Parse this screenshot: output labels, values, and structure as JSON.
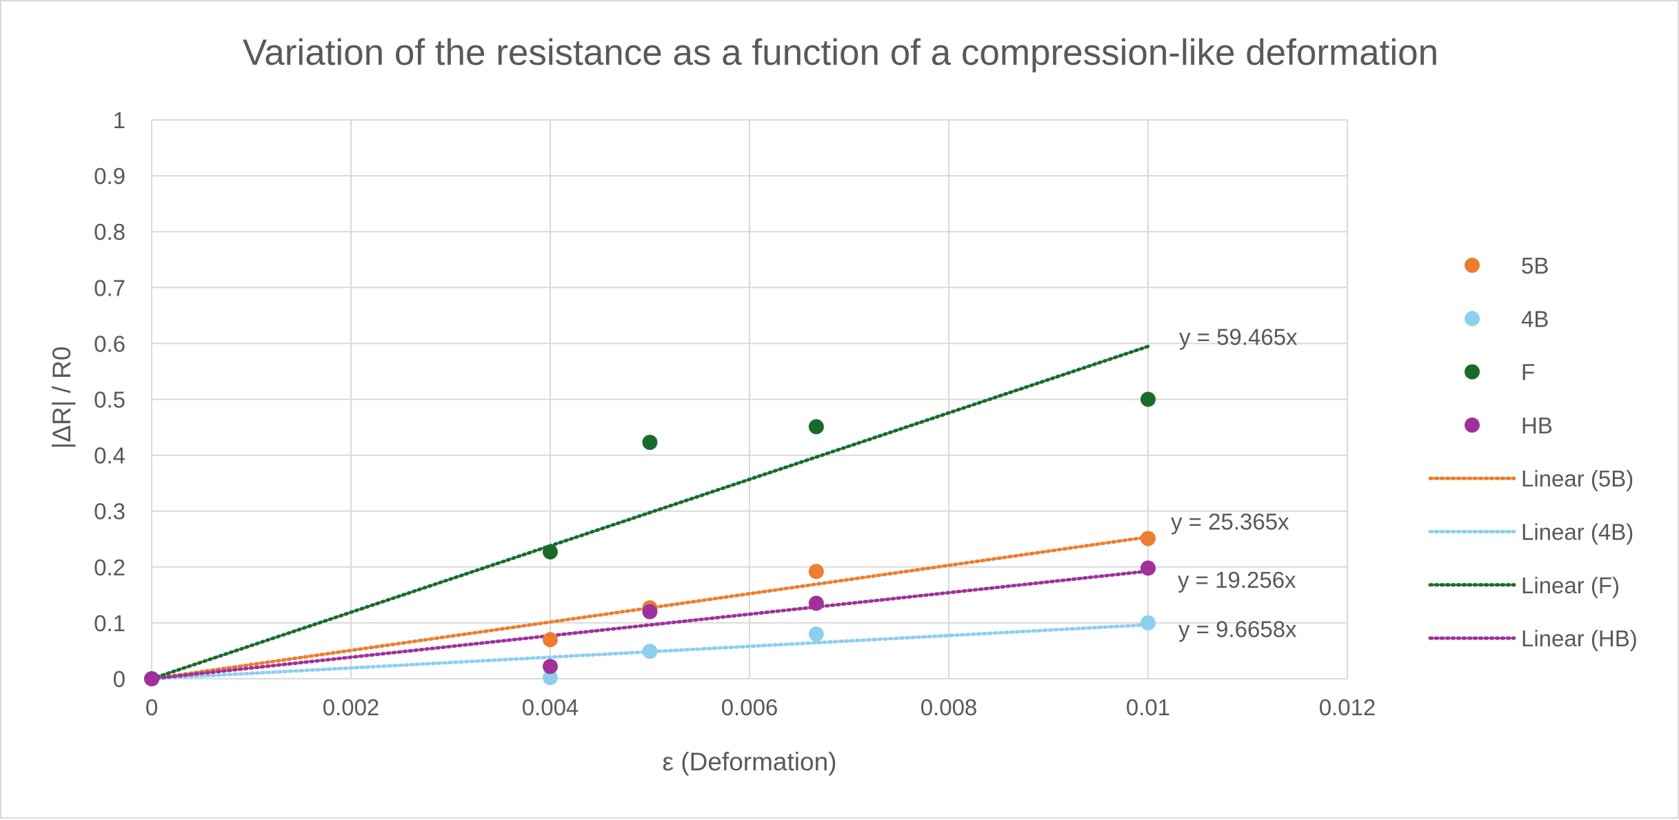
{
  "chart_data": {
    "type": "scatter",
    "title": "Variation of the resistance as a function of a compression-like deformation",
    "xlabel": "ε  (Deformation)",
    "ylabel": "|ΔR| / R0",
    "xlim": [
      0,
      0.012
    ],
    "ylim": [
      0,
      1
    ],
    "x_ticks": [
      {
        "value": 0,
        "label": "0"
      },
      {
        "value": 0.002,
        "label": "0.002"
      },
      {
        "value": 0.004,
        "label": "0.004"
      },
      {
        "value": 0.006,
        "label": "0.006"
      },
      {
        "value": 0.008,
        "label": "0.008"
      },
      {
        "value": 0.01,
        "label": "0.01"
      },
      {
        "value": 0.012,
        "label": "0.012"
      }
    ],
    "y_ticks": [
      {
        "value": 0,
        "label": "0"
      },
      {
        "value": 0.1,
        "label": "0.1"
      },
      {
        "value": 0.2,
        "label": "0.2"
      },
      {
        "value": 0.3,
        "label": "0.3"
      },
      {
        "value": 0.4,
        "label": "0.4"
      },
      {
        "value": 0.5,
        "label": "0.5"
      },
      {
        "value": 0.6,
        "label": "0.6"
      },
      {
        "value": 0.7,
        "label": "0.7"
      },
      {
        "value": 0.8,
        "label": "0.8"
      },
      {
        "value": 0.9,
        "label": "0.9"
      },
      {
        "value": 1,
        "label": "1"
      }
    ],
    "grid": true,
    "legend_position": "right",
    "series": [
      {
        "name": "5B",
        "color": "#ED7D31",
        "points": [
          [
            0,
            0
          ],
          [
            0.004,
            0.07
          ],
          [
            0.005,
            0.127
          ],
          [
            0.00667,
            0.192
          ],
          [
            0.01,
            0.251
          ]
        ],
        "trendline": {
          "name": "Linear (5B)",
          "slope": 25.365,
          "x_range": [
            0,
            0.01
          ],
          "equation": "y = 25.365x"
        }
      },
      {
        "name": "4B",
        "color": "#8ECFEF",
        "points": [
          [
            0,
            0
          ],
          [
            0.004,
            0.002
          ],
          [
            0.005,
            0.049
          ],
          [
            0.00667,
            0.08
          ],
          [
            0.01,
            0.1
          ]
        ],
        "trendline": {
          "name": "Linear (4B)",
          "slope": 9.6658,
          "x_range": [
            0,
            0.01
          ],
          "equation": "y = 9.6658x"
        }
      },
      {
        "name": "F",
        "color": "#1A6B2A",
        "points": [
          [
            0,
            0
          ],
          [
            0.004,
            0.227
          ],
          [
            0.005,
            0.423
          ],
          [
            0.00667,
            0.451
          ],
          [
            0.01,
            0.5
          ]
        ],
        "trendline": {
          "name": "Linear (F)",
          "slope": 59.465,
          "x_range": [
            0,
            0.01
          ],
          "equation": "y = 59.465x"
        }
      },
      {
        "name": "HB",
        "color": "#A0309C",
        "points": [
          [
            0,
            0
          ],
          [
            0.004,
            0.022
          ],
          [
            0.005,
            0.12
          ],
          [
            0.00667,
            0.135
          ],
          [
            0.01,
            0.198
          ]
        ],
        "trendline": {
          "name": "Linear (HB)",
          "slope": 19.256,
          "x_range": [
            0,
            0.01
          ],
          "equation": "y = 19.256x"
        }
      }
    ]
  }
}
